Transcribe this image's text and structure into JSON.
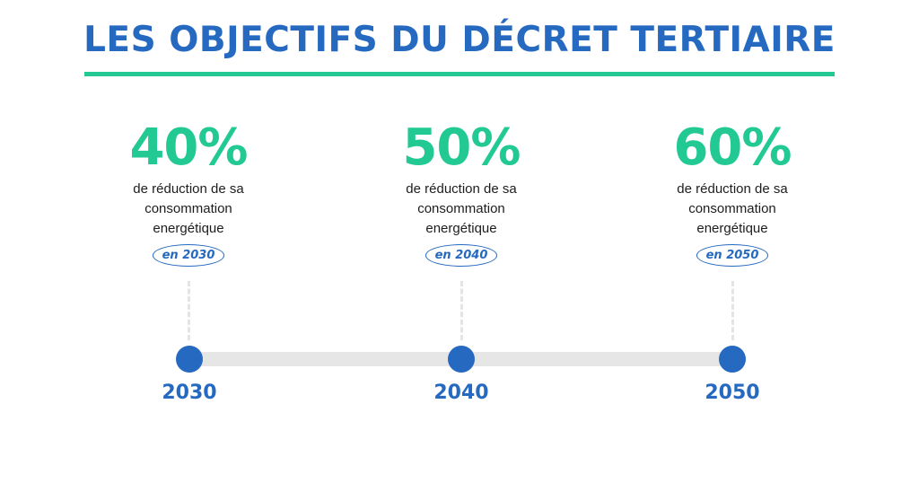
{
  "title": "LES OBJECTIFS DU DÉCRET TERTIAIRE",
  "milestones": [
    {
      "percent": "40%",
      "desc_lines": [
        "de réduction de sa",
        "consommation",
        "energétique"
      ],
      "year_pill": "en 2030",
      "axis_label": "2030"
    },
    {
      "percent": "50%",
      "desc_lines": [
        "de réduction de sa",
        "consommation",
        "energétique"
      ],
      "year_pill": "en 2040",
      "axis_label": "2040"
    },
    {
      "percent": "60%",
      "desc_lines": [
        "de réduction de sa",
        "consommation",
        "energétique"
      ],
      "year_pill": "en 2050",
      "axis_label": "2050"
    }
  ],
  "colors": {
    "title": "#2569c0",
    "accent": "#22c993",
    "node": "#2569c0",
    "track": "#e6e6e6"
  }
}
